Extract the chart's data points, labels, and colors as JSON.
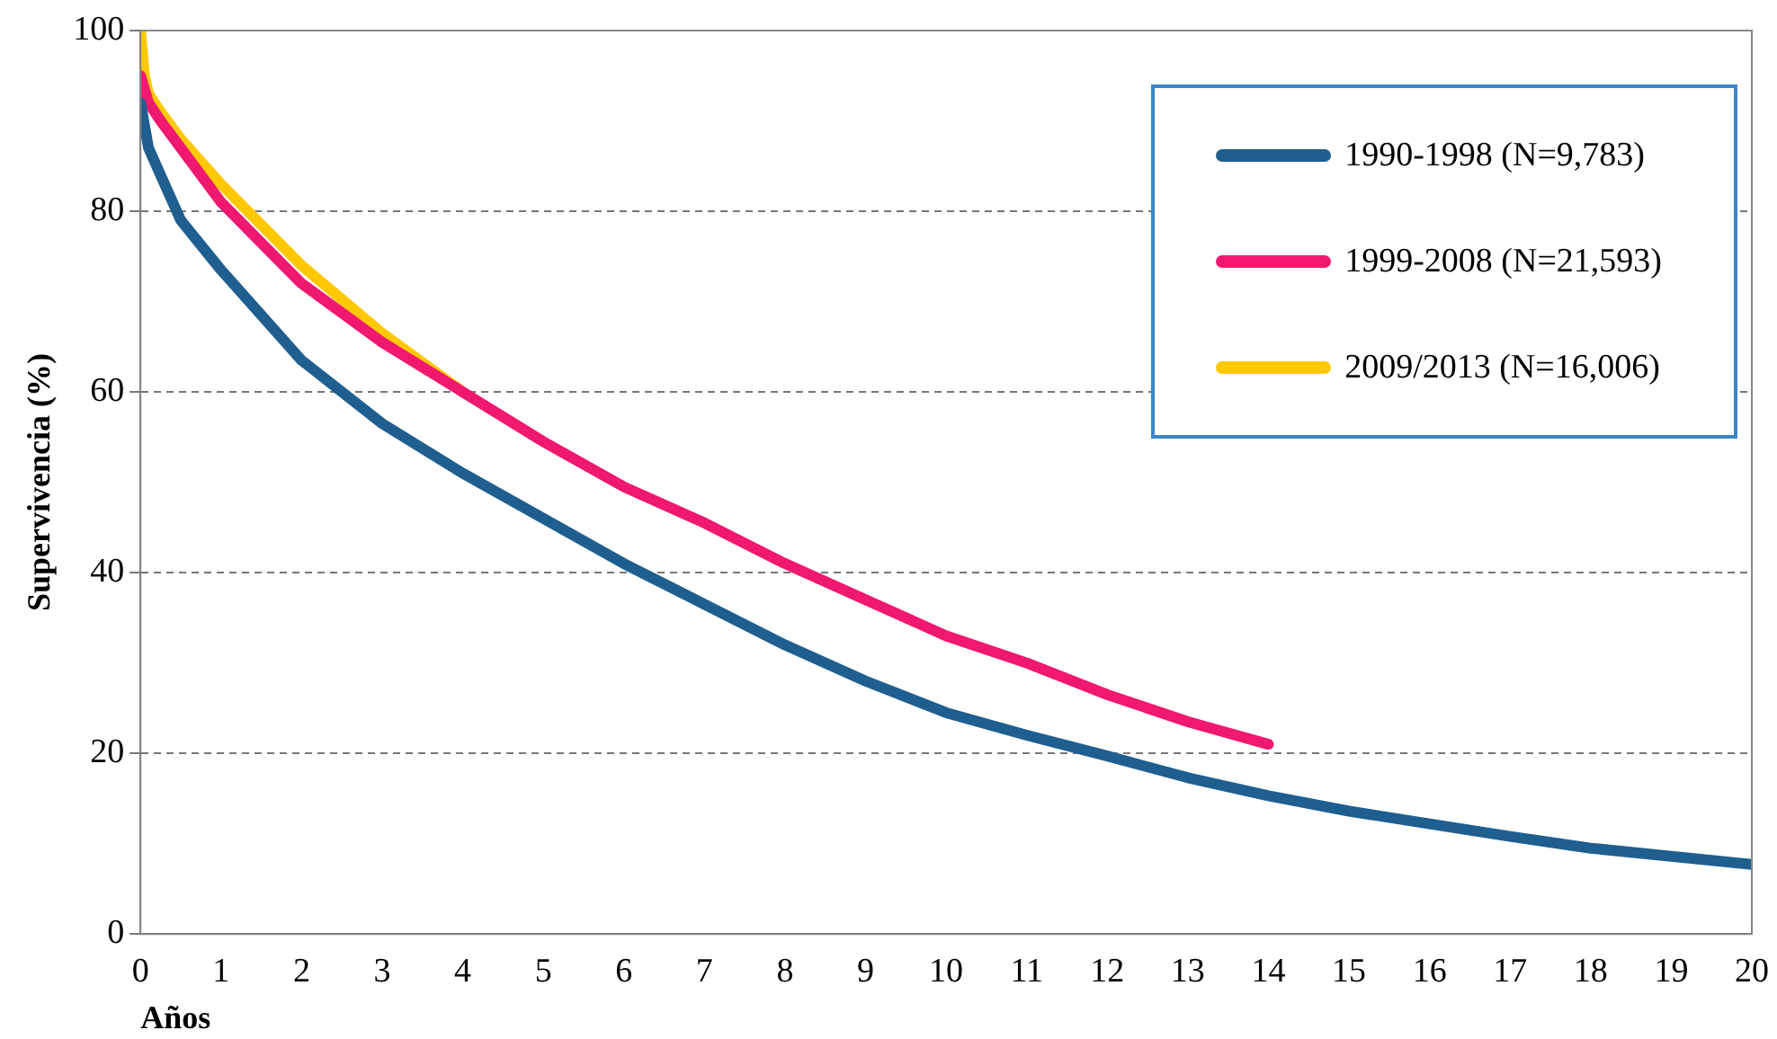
{
  "chart_data": {
    "type": "line",
    "xlabel": "Años",
    "ylabel": "Supervivencia (%)",
    "xlim": [
      0,
      20
    ],
    "xticks": [
      0,
      1,
      2,
      3,
      4,
      5,
      6,
      7,
      8,
      9,
      10,
      11,
      12,
      13,
      14,
      15,
      16,
      17,
      18,
      19,
      20
    ],
    "ylim": [
      0,
      100
    ],
    "yticks": [
      0,
      20,
      40,
      60,
      80,
      100
    ],
    "grid": "y",
    "legend": "top right",
    "marker": "none",
    "line_style": "solid",
    "series": [
      {
        "name": "1990-1998 (N=9,783)",
        "color": "#1f5f8f",
        "x": [
          0,
          0.1,
          0.25,
          0.5,
          1,
          2,
          3,
          4,
          5,
          6,
          7,
          8,
          9,
          10,
          11,
          12,
          13,
          14,
          15,
          16,
          17,
          18,
          19,
          20
        ],
        "values": [
          92,
          87,
          84,
          79,
          73.5,
          63.5,
          56.5,
          51,
          46,
          41,
          36.5,
          32,
          28,
          24.5,
          22,
          19.7,
          17.3,
          15.3,
          13.6,
          12.2,
          10.8,
          9.5,
          8.6,
          7.7
        ]
      },
      {
        "name": "1999-2008 (N=21,593)",
        "color": "#f0186f",
        "x": [
          0,
          0.1,
          0.25,
          0.5,
          1,
          2,
          3,
          4,
          5,
          6,
          7,
          8,
          9,
          10,
          11,
          12,
          13,
          14
        ],
        "values": [
          95,
          92,
          90,
          87,
          81,
          72,
          65.5,
          60,
          54.5,
          49.5,
          45.5,
          41,
          37,
          33,
          30,
          26.5,
          23.5,
          21
        ]
      },
      {
        "name": "2009/2013 (N=16,006)",
        "color": "#ffc800",
        "x": [
          0,
          0.05,
          0.1,
          0.25,
          0.5,
          1,
          2,
          3,
          4
        ],
        "values": [
          100,
          95,
          93,
          91,
          88,
          83,
          74,
          66.5,
          60
        ]
      }
    ]
  }
}
